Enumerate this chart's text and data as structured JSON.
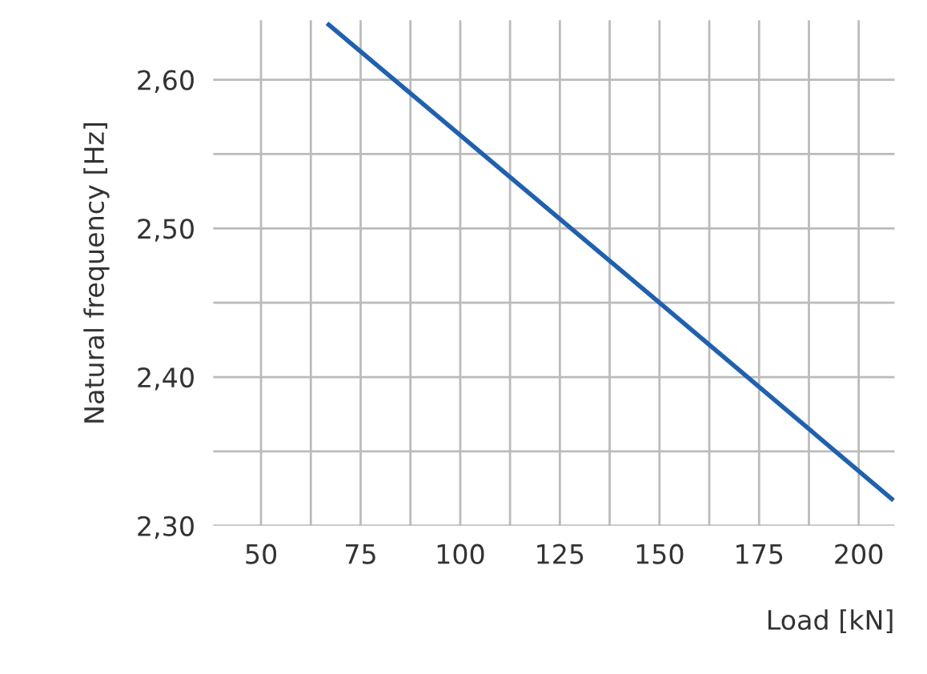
{
  "chart_data": {
    "type": "line",
    "xlabel": "Load [kN]",
    "ylabel": "Natural frequency [Hz]",
    "x": [
      67,
      150,
      208.3
    ],
    "series": [
      {
        "color": "#2060b0",
        "values": [
          2.637,
          2.45,
          2.318
        ]
      }
    ],
    "xlim": [
      38,
      209
    ],
    "ylim": [
      2.3,
      2.64
    ],
    "xticks": [
      50,
      {
        "value": 62.5,
        "label": null
      },
      75,
      {
        "value": 87.5,
        "label": null
      },
      100,
      {
        "value": 112.5,
        "label": null
      },
      125,
      {
        "value": 137.5,
        "label": null
      },
      150,
      {
        "value": 162.5,
        "label": null
      },
      175,
      {
        "value": 187.5,
        "label": null
      },
      200
    ],
    "yticks": [
      {
        "value": 2.3,
        "label": "2,30"
      },
      {
        "value": 2.35,
        "label": null
      },
      {
        "value": 2.4,
        "label": "2,40"
      },
      {
        "value": 2.45,
        "label": null
      },
      {
        "value": 2.5,
        "label": "2,50"
      },
      {
        "value": 2.55,
        "label": null
      },
      {
        "value": 2.6,
        "label": "2,60"
      }
    ],
    "grid": true,
    "line_style": "solid",
    "marker": "none"
  }
}
